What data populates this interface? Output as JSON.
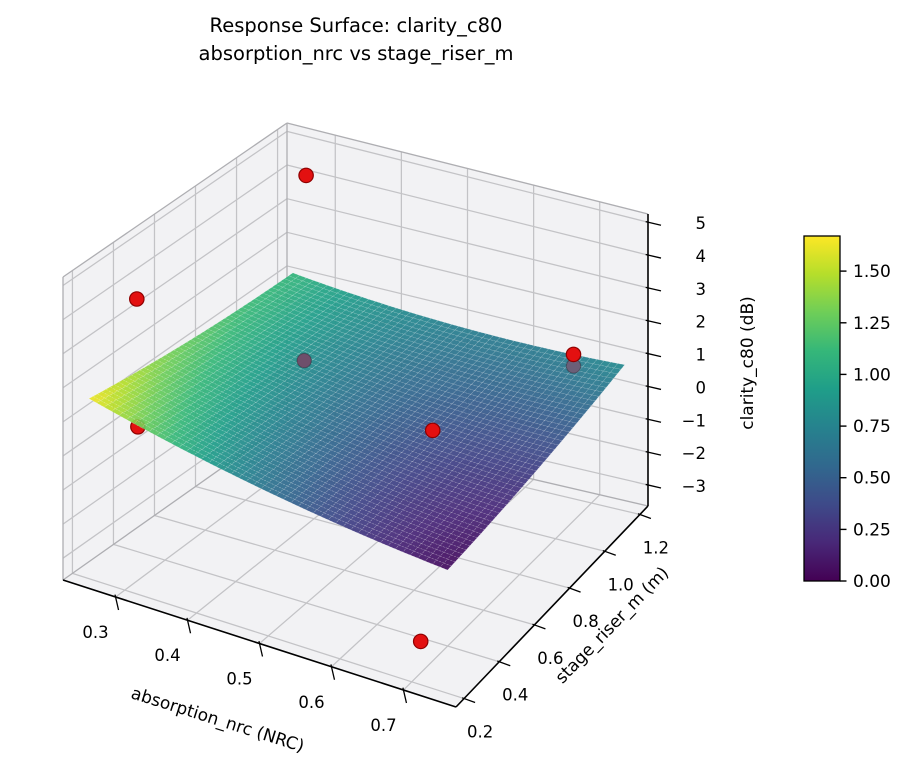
{
  "title": {
    "line1": "Response Surface: clarity_c80",
    "line2": "absorption_nrc vs stage_riser_m"
  },
  "chart_data": {
    "type": "surface3d",
    "title": "Response Surface: clarity_c80\nabsorption_nrc vs stage_riser_m",
    "xlabel": "absorption_nrc (NRC)",
    "ylabel": "stage_riser_m (m)",
    "zlabel": "clarity_c80 (dB)",
    "x_tick_labels": [
      "0.3",
      "0.4",
      "0.5",
      "0.6",
      "0.7"
    ],
    "x_tick_values": [
      0.3,
      0.4,
      0.5,
      0.6,
      0.7
    ],
    "y_tick_labels": [
      "0.2",
      "0.4",
      "0.6",
      "0.8",
      "1.0",
      "1.2"
    ],
    "y_tick_values": [
      0.2,
      0.4,
      0.6,
      0.8,
      1.0,
      1.2
    ],
    "z_tick_labels": [
      "−3",
      "−2",
      "−1",
      "0",
      "1",
      "2",
      "3",
      "4",
      "5"
    ],
    "z_tick_values": [
      -3,
      -2,
      -1,
      0,
      1,
      2,
      3,
      4,
      5
    ],
    "xlim": [
      0.227,
      0.773
    ],
    "ylim": [
      0.154,
      1.246
    ],
    "zlim": [
      -3.64,
      5.25
    ],
    "grid": true,
    "surface": {
      "x_range": [
        0.25,
        0.75
      ],
      "y_range": [
        0.2,
        1.2
      ],
      "grid_n": 48,
      "z_model_note": "z = c0 + bX*X + cY*Y + dX2*X^2 + eY2*Y^2 + fXY*X*Y, X=(x-0.25)/0.5, Y=(y-0.2)/1.0",
      "z_model": {
        "c0": 1.65,
        "bX": -2.5,
        "cY": -1.0,
        "dX2": 0.9,
        "eY2": 0.45,
        "fXY": 1.3
      },
      "z_min": 0.05,
      "z_max": 1.65,
      "colormap": "viridis",
      "mesh_color": "rgba(255,255,255,0.3)"
    },
    "colorbar": {
      "vmin": 0.0,
      "vmax": 1.67,
      "tick_labels": [
        "0.00",
        "0.25",
        "0.50",
        "0.75",
        "1.00",
        "1.25",
        "1.50"
      ],
      "tick_values": [
        0.0,
        0.25,
        0.5,
        0.75,
        1.0,
        1.25,
        1.5
      ],
      "colormap": "viridis"
    },
    "scatter": {
      "color": "#e31010",
      "edge_color": "#8f0000",
      "marker_radius": 7.2,
      "points": [
        {
          "x": 0.27,
          "y": 1.2,
          "z": 4.1,
          "state": "visible"
        },
        {
          "x": 0.26,
          "y": 0.4,
          "z": 3.8,
          "state": "visible"
        },
        {
          "x": 0.4,
          "y": 0.75,
          "z": 1.3,
          "state": "occluded",
          "muted_color": "#6e4f6b"
        },
        {
          "x": 0.25,
          "y": 0.44,
          "z": -0.2,
          "state": "behind"
        },
        {
          "x": 0.64,
          "y": 0.55,
          "z": 1.65,
          "state": "visible"
        },
        {
          "x": 0.7,
          "y": 1.1,
          "z": 1.4,
          "state": "visible"
        },
        {
          "x": 0.7,
          "y": 1.1,
          "z": 1.05,
          "state": "occluded",
          "muted_color": "#6b5f78"
        },
        {
          "x": 0.7,
          "y": 0.25,
          "z": -2.7,
          "state": "visible"
        }
      ]
    },
    "viridis_stops": [
      [
        68,
        1,
        84
      ],
      [
        72,
        40,
        120
      ],
      [
        62,
        74,
        137
      ],
      [
        49,
        104,
        142
      ],
      [
        38,
        130,
        142
      ],
      [
        31,
        158,
        137
      ],
      [
        53,
        183,
        121
      ],
      [
        110,
        206,
        88
      ],
      [
        181,
        222,
        43
      ],
      [
        253,
        231,
        37
      ]
    ],
    "style_colors": {
      "pane_color": "#f2f2f4",
      "grid_color": "#c3c3c6",
      "pane_edge_color": "#aeaeb2",
      "axis_color": "#000000",
      "background": "#ffffff"
    }
  }
}
